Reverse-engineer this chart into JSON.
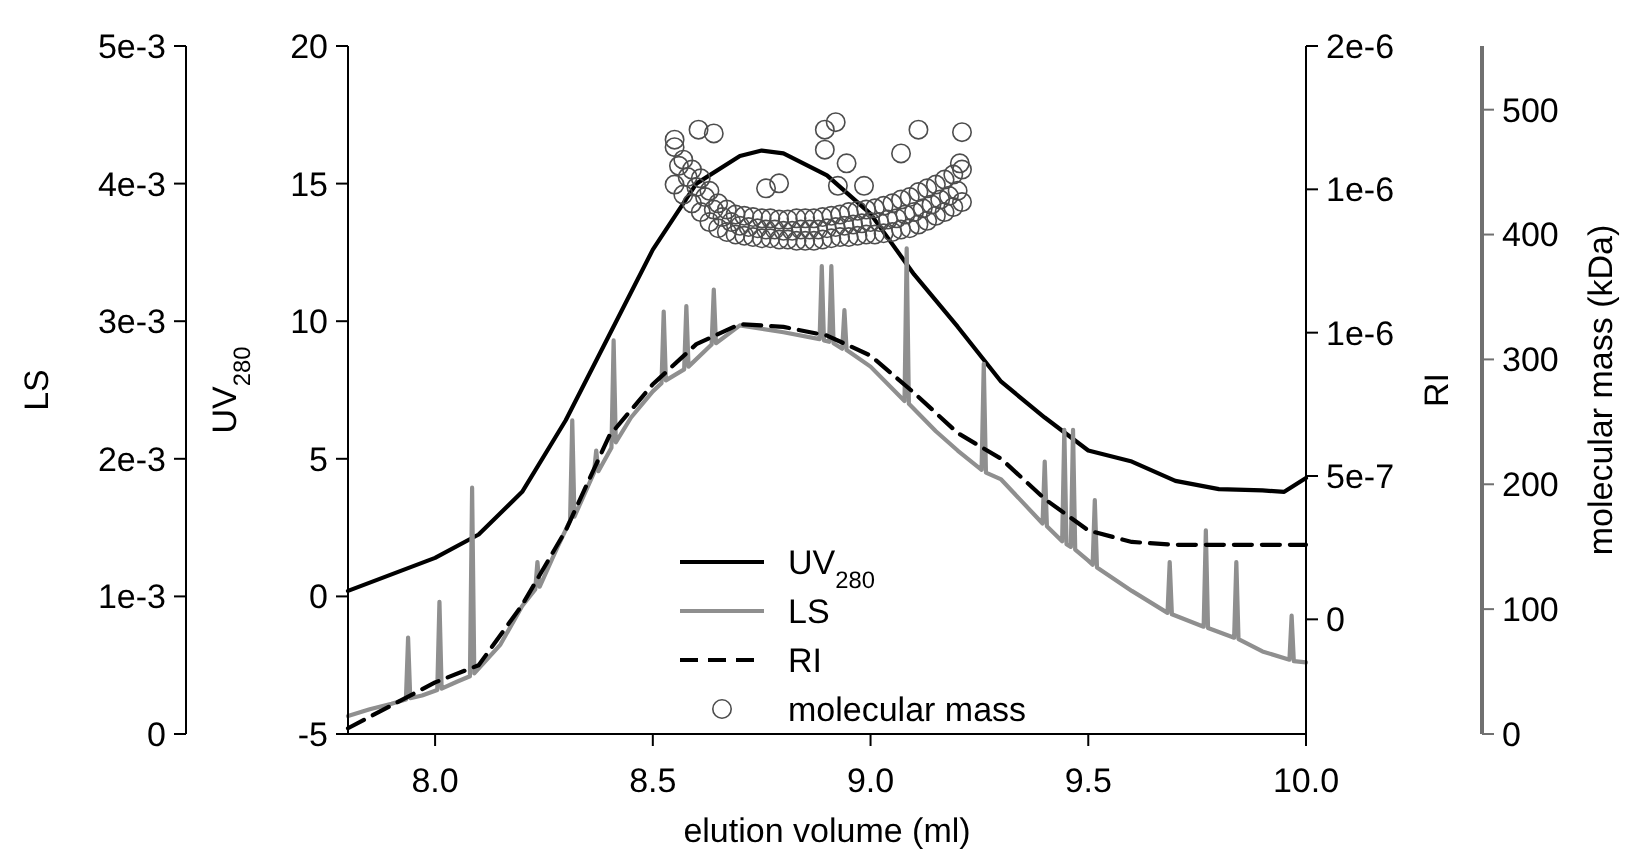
{
  "chart_data": [
    {
      "type": "line",
      "xlabel": "elution volume (ml)",
      "ylabel": "UV$_{280}$",
      "y2label": "RI",
      "y3label": "LS",
      "xlim": [
        7.8,
        10.0
      ],
      "xticks": [
        {
          "value": 8,
          "label": "8.0"
        },
        8.5,
        {
          "value": 9,
          "label": "9.0"
        },
        9.5,
        {
          "value": 10,
          "label": "10.0"
        }
      ],
      "ylim": [
        -5,
        20
      ],
      "yticks": [
        -5,
        0,
        5,
        10,
        15,
        20
      ],
      "y2lim": [
        -4e-07,
        2e-06
      ],
      "y2ticks": [
        0,
        {
          "value": 5e-07,
          "label": "5e-7"
        },
        {
          "value": 1e-06,
          "label": "1e-6"
        },
        {
          "value": 1.5e-06,
          "label": "1e-6"
        },
        {
          "value": 2e-06,
          "label": "2e-6"
        }
      ],
      "y3lim": [
        0,
        0.005
      ],
      "y3ticks": [
        0,
        {
          "value": 0.001,
          "label": "1e-3"
        },
        {
          "value": 0.002,
          "label": "2e-3"
        },
        {
          "value": 0.003,
          "label": "3e-3"
        },
        {
          "value": 0.004,
          "label": "4e-3"
        },
        {
          "value": 0.005,
          "label": "5e-3"
        }
      ],
      "legend": "bottom",
      "series": [
        {
          "name": "UV$_{280}$",
          "color": "#000000",
          "line_style": "solid",
          "x": [
            7.8,
            8.0,
            8.1,
            8.2,
            8.3,
            8.4,
            8.5,
            8.6,
            8.7,
            8.75,
            8.8,
            8.9,
            9.0,
            9.1,
            9.2,
            9.3,
            9.4,
            9.5,
            9.6,
            9.7,
            9.8,
            9.9,
            9.95,
            10.0
          ],
          "values": [
            0.2,
            1.4,
            2.25,
            3.8,
            6.4,
            9.5,
            12.6,
            15,
            16,
            16.2,
            16.1,
            15.3,
            13.9,
            11.7,
            9.8,
            7.8,
            6.5,
            5.3,
            4.9,
            4.2,
            3.9,
            3.85,
            3.8,
            4.3
          ]
        },
        {
          "name": "LS",
          "axis": "y3",
          "color": "#8f8f8f",
          "line_style": "solid",
          "x": [
            7.8,
            7.85,
            7.9,
            7.933,
            7.938,
            7.943,
            7.97,
            8.005,
            8.01,
            8.015,
            8.05,
            8.08,
            8.085,
            8.09,
            8.15,
            8.2,
            8.23,
            8.235,
            8.24,
            8.28,
            8.31,
            8.315,
            8.32,
            8.365,
            8.37,
            8.375,
            8.405,
            8.41,
            8.415,
            8.45,
            8.5,
            8.52,
            8.525,
            8.53,
            8.572,
            8.577,
            8.582,
            8.635,
            8.64,
            8.645,
            8.7,
            8.8,
            8.883,
            8.888,
            8.893,
            8.905,
            8.91,
            8.915,
            8.935,
            8.94,
            8.945,
            9.0,
            9.078,
            9.083,
            9.088,
            9.15,
            9.2,
            9.255,
            9.26,
            9.265,
            9.3,
            9.395,
            9.4,
            9.405,
            9.44,
            9.445,
            9.45,
            9.46,
            9.465,
            9.47,
            9.5,
            9.51,
            9.515,
            9.52,
            9.6,
            9.682,
            9.687,
            9.692,
            9.765,
            9.77,
            9.775,
            9.835,
            9.84,
            9.845,
            9.9,
            9.962,
            9.967,
            9.972,
            10.0
          ],
          "values": [
            0.00013,
            0.00018,
            0.00022,
            0.00025,
            0.0007,
            0.00026,
            0.00028,
            0.00032,
            0.00096,
            0.00033,
            0.00038,
            0.00042,
            0.00179,
            0.00044,
            0.00065,
            0.00093,
            0.00105,
            0.00125,
            0.00107,
            0.00135,
            0.00155,
            0.00228,
            0.00158,
            0.0019,
            0.00206,
            0.00191,
            0.00208,
            0.00286,
            0.00212,
            0.0023,
            0.00249,
            0.00255,
            0.00307,
            0.00257,
            0.00265,
            0.00311,
            0.00267,
            0.00283,
            0.00323,
            0.00284,
            0.00297,
            0.00292,
            0.00287,
            0.0034,
            0.00286,
            0.00285,
            0.0034,
            0.00284,
            0.0028,
            0.00308,
            0.00279,
            0.00267,
            0.00242,
            0.00353,
            0.0024,
            0.0022,
            0.00206,
            0.00192,
            0.00269,
            0.0019,
            0.00185,
            0.00153,
            0.00198,
            0.00151,
            0.0014,
            0.00221,
            0.00138,
            0.00136,
            0.00221,
            0.00134,
            0.00126,
            0.00123,
            0.0017,
            0.00121,
            0.00104,
            0.00088,
            0.00125,
            0.00087,
            0.00078,
            0.00148,
            0.00077,
            0.0007,
            0.00125,
            0.00069,
            0.0006,
            0.00054,
            0.00086,
            0.00053,
            0.00052
          ]
        },
        {
          "name": "RI",
          "axis": "y2",
          "color": "#000000",
          "line_style": "dashed",
          "x": [
            7.8,
            8.0,
            8.1,
            8.2,
            8.3,
            8.4,
            8.5,
            8.6,
            8.7,
            8.8,
            8.9,
            9.0,
            9.1,
            9.2,
            9.3,
            9.4,
            9.5,
            9.6,
            9.7,
            9.8,
            9.9,
            10.0
          ],
          "values": [
            -3.8e-07,
            -2.2e-07,
            -1.6e-07,
            5e-08,
            3.1e-07,
            6.4e-07,
            8.2e-07,
            9.6e-07,
            1.03e-06,
            1.02e-06,
            9.9e-07,
            9.2e-07,
            7.9e-07,
            6.5e-07,
            5.6e-07,
            4.2e-07,
            3.1e-07,
            2.7e-07,
            2.6e-07,
            2.6e-07,
            2.6e-07,
            2.6e-07
          ]
        }
      ]
    },
    {
      "type": "scatter",
      "ylabel": "molecular mass (kDa)",
      "xlim": [
        7.8,
        10.0
      ],
      "ylim": [
        0,
        551
      ],
      "yticks": [
        0,
        100,
        200,
        300,
        400,
        500
      ],
      "tick_labels": "y",
      "legend": "bottom",
      "marker": "circle",
      "series": [
        {
          "name": "molecular mass",
          "color": "#4d4d4d",
          "x": [
            8.55,
            8.55,
            8.56,
            8.57,
            8.57,
            8.58,
            8.59,
            8.59,
            8.6,
            8.61,
            8.61,
            8.62,
            8.63,
            8.63,
            8.64,
            8.65,
            8.65,
            8.66,
            8.67,
            8.67,
            8.68,
            8.69,
            8.69,
            8.7,
            8.71,
            8.71,
            8.72,
            8.73,
            8.73,
            8.74,
            8.75,
            8.75,
            8.76,
            8.77,
            8.77,
            8.78,
            8.79,
            8.79,
            8.8,
            8.81,
            8.81,
            8.82,
            8.83,
            8.83,
            8.84,
            8.85,
            8.85,
            8.86,
            8.87,
            8.87,
            8.88,
            8.89,
            8.89,
            8.9,
            8.91,
            8.91,
            8.92,
            8.93,
            8.93,
            8.94,
            8.95,
            8.95,
            8.96,
            8.97,
            8.97,
            8.98,
            8.99,
            8.99,
            9.0,
            9.01,
            9.01,
            9.02,
            9.03,
            9.03,
            9.04,
            9.05,
            9.05,
            9.06,
            9.07,
            9.07,
            9.08,
            9.09,
            9.09,
            9.1,
            9.11,
            9.11,
            9.12,
            9.13,
            9.13,
            9.14,
            9.15,
            9.15,
            9.16,
            9.17,
            9.17,
            9.18,
            9.19,
            9.19,
            9.2,
            9.21,
            9.21,
            8.605,
            8.64,
            8.55,
            8.895,
            8.92,
            8.895,
            8.945,
            9.11,
            9.21,
            9.205,
            9.07,
            8.79,
            8.985,
            8.76,
            8.925
          ],
          "values": [
            440,
            470,
            455,
            432,
            460,
            446,
            425,
            452,
            438,
            418,
            445,
            430,
            410,
            435,
            420,
            405,
            425,
            414,
            402,
            420,
            410,
            400,
            416,
            407,
            399,
            415,
            406,
            398,
            414,
            405,
            397,
            413,
            404,
            397,
            413,
            404,
            396,
            412,
            403,
            396,
            412,
            403,
            395,
            413,
            404,
            395,
            413,
            404,
            395,
            413,
            404,
            396,
            414,
            405,
            397,
            415,
            406,
            398,
            416,
            407,
            398,
            418,
            408,
            399,
            419,
            409,
            400,
            420,
            410,
            400,
            421,
            410,
            401,
            423,
            412,
            402,
            425,
            413,
            404,
            428,
            416,
            405,
            430,
            418,
            408,
            434,
            421,
            411,
            437,
            424,
            415,
            440,
            428,
            418,
            444,
            431,
            422,
            448,
            435,
            426,
            452,
            484,
            481,
            476,
            484,
            490,
            468,
            457,
            484,
            482,
            457,
            465,
            441,
            439,
            437,
            439
          ]
        }
      ]
    }
  ]
}
